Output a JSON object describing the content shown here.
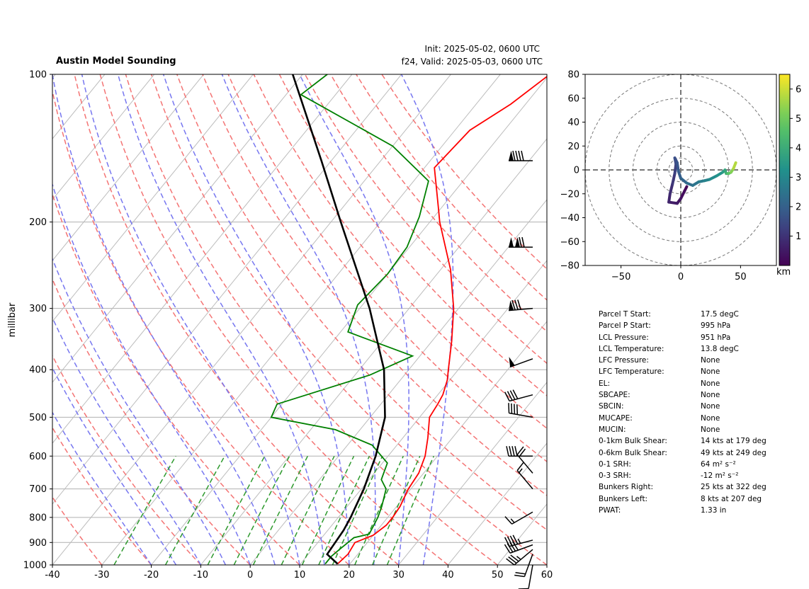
{
  "header": {
    "title": "Austin Model Sounding",
    "init": "Init: 2025-05-02, 0600 UTC",
    "valid": "f24, Valid: 2025-05-03, 0600 UTC"
  },
  "chart_data": [
    {
      "type": "skew-t",
      "title": "Austin Model Sounding",
      "ylabel": "millibar",
      "xlabel": "",
      "x_ticks": [
        -40,
        -30,
        -20,
        -10,
        0,
        10,
        20,
        30,
        40,
        50,
        60
      ],
      "y_ticks": [
        1000,
        900,
        800,
        700,
        600,
        500,
        400,
        300,
        200,
        100
      ],
      "xlim": [
        -40,
        60
      ],
      "ylim": [
        1000,
        100
      ],
      "y_scale": "log",
      "grid": true,
      "series": [
        {
          "color": "#ff0000",
          "points": [
            [
              995,
              17.5
            ],
            [
              950,
              18.0
            ],
            [
              900,
              17.5
            ],
            [
              870,
              20.0
            ],
            [
              830,
              21.0
            ],
            [
              800,
              21.0
            ],
            [
              760,
              20.7
            ],
            [
              700,
              19.5
            ],
            [
              650,
              19.0
            ],
            [
              600,
              17.5
            ],
            [
              550,
              15.0
            ],
            [
              500,
              12.0
            ],
            [
              470,
              11.5
            ],
            [
              450,
              11.0
            ],
            [
              420,
              9.5
            ],
            [
              400,
              8.0
            ],
            [
              350,
              4.0
            ],
            [
              300,
              -1.0
            ],
            [
              250,
              -8.0
            ],
            [
              200,
              -18.0
            ],
            [
              190,
              -20.0
            ],
            [
              155,
              -28.0
            ],
            [
              130,
              -27.0
            ],
            [
              115,
              -23.0
            ],
            [
              100,
              -20.0
            ]
          ]
        },
        {
          "color": "#008000",
          "points": [
            [
              995,
              15.0
            ],
            [
              960,
              15.0
            ],
            [
              930,
              15.5
            ],
            [
              880,
              16.5
            ],
            [
              865,
              19.0
            ],
            [
              800,
              18.0
            ],
            [
              760,
              17.0
            ],
            [
              700,
              15.0
            ],
            [
              670,
              12.5
            ],
            [
              620,
              11.0
            ],
            [
              570,
              5.0
            ],
            [
              530,
              -5.0
            ],
            [
              500,
              -20.0
            ],
            [
              470,
              -21.0
            ],
            [
              410,
              -7.0
            ],
            [
              375,
              -1.5
            ],
            [
              335,
              -18.5
            ],
            [
              295,
              -21.0
            ],
            [
              255,
              -20.0
            ],
            [
              225,
              -20.5
            ],
            [
              195,
              -23.0
            ],
            [
              165,
              -27.0
            ],
            [
              140,
              -40.0
            ],
            [
              110,
              -67.0
            ],
            [
              100,
              -65.0
            ]
          ]
        },
        {
          "color": "#000000",
          "points": [
            [
              995,
              17.5
            ],
            [
              951,
              13.8
            ],
            [
              900,
              13.5
            ],
            [
              850,
              13.2
            ],
            [
              800,
              12.5
            ],
            [
              700,
              10.5
            ],
            [
              600,
              7.5
            ],
            [
              500,
              3.0
            ],
            [
              400,
              -5.0
            ],
            [
              300,
              -18.0
            ],
            [
              200,
              -38.0
            ],
            [
              150,
              -52.0
            ],
            [
              100,
              -72.0
            ]
          ]
        }
      ],
      "wind_barbs": [
        {
          "p": 1000,
          "dir": 190,
          "spd": 10
        },
        {
          "p": 950,
          "dir": 200,
          "spd": 20
        },
        {
          "p": 930,
          "dir": 230,
          "spd": 35
        },
        {
          "p": 910,
          "dir": 250,
          "spd": 40
        },
        {
          "p": 890,
          "dir": 255,
          "spd": 45
        },
        {
          "p": 780,
          "dir": 240,
          "spd": 15
        },
        {
          "p": 700,
          "dir": 320,
          "spd": 15
        },
        {
          "p": 650,
          "dir": 320,
          "spd": 20
        },
        {
          "p": 600,
          "dir": 270,
          "spd": 40
        },
        {
          "p": 500,
          "dir": 280,
          "spd": 40
        },
        {
          "p": 450,
          "dir": 255,
          "spd": 40
        },
        {
          "p": 380,
          "dir": 250,
          "spd": 50
        },
        {
          "p": 300,
          "dir": 265,
          "spd": 80
        },
        {
          "p": 225,
          "dir": 270,
          "spd": 120
        },
        {
          "p": 150,
          "dir": 270,
          "spd": 90
        }
      ]
    },
    {
      "type": "hodograph",
      "x_ticks": [
        -50,
        0,
        50
      ],
      "y_ticks": [
        -80,
        -60,
        -40,
        -20,
        0,
        20,
        40,
        60,
        80
      ],
      "xlim": [
        -80,
        80
      ],
      "ylim": [
        -80,
        80
      ],
      "rings": [
        10,
        20,
        40,
        60,
        80
      ],
      "colorbar": {
        "label": "km",
        "ticks": [
          1,
          2,
          3,
          4,
          5,
          6
        ],
        "range": [
          0,
          6.5
        ],
        "colormap": "viridis"
      },
      "path": [
        [
          5,
          -14,
          0.0
        ],
        [
          3,
          -18,
          0.15
        ],
        [
          0,
          -24,
          0.3
        ],
        [
          -3,
          -28,
          0.45
        ],
        [
          -10,
          -27,
          0.6
        ],
        [
          -9,
          -20,
          0.8
        ],
        [
          -7,
          -12,
          1.0
        ],
        [
          -5,
          -3,
          1.2
        ],
        [
          -4,
          5,
          1.35
        ],
        [
          -5,
          10,
          1.5
        ],
        [
          -3,
          6,
          1.65
        ],
        [
          -2,
          -1,
          1.8
        ],
        [
          0,
          -7,
          2.0
        ],
        [
          5,
          -11,
          2.2
        ],
        [
          10,
          -13,
          2.4
        ],
        [
          15,
          -10,
          2.6
        ],
        [
          20,
          -9,
          2.8
        ],
        [
          24,
          -8,
          3.0
        ],
        [
          30,
          -5,
          3.2
        ],
        [
          35,
          -2,
          3.4
        ],
        [
          37,
          0,
          3.7
        ],
        [
          38,
          -3,
          4.0
        ],
        [
          40,
          -3,
          4.5
        ],
        [
          42,
          -2,
          5.0
        ],
        [
          44,
          1,
          5.5
        ],
        [
          46,
          6,
          6.0
        ]
      ]
    }
  ],
  "stats": [
    {
      "label": "Parcel T Start:",
      "value": "17.5 degC"
    },
    {
      "label": "Parcel P Start:",
      "value": "995 hPa"
    },
    {
      "label": "LCL Pressure:",
      "value": "951 hPa"
    },
    {
      "label": "LCL Temperature:",
      "value": "13.8 degC"
    },
    {
      "label": "LFC Pressure:",
      "value": "None"
    },
    {
      "label": "LFC Temperature:",
      "value": "None"
    },
    {
      "label": "EL:",
      "value": "None"
    },
    {
      "label": "SBCAPE:",
      "value": "None"
    },
    {
      "label": "SBCIN:",
      "value": "None"
    },
    {
      "label": "MUCAPE:",
      "value": "None"
    },
    {
      "label": "MUCIN:",
      "value": "None"
    },
    {
      "label": "0-1km Bulk Shear:",
      "value": "14 kts at 179 deg"
    },
    {
      "label": "0-6km Bulk Shear:",
      "value": "49 kts at 249 deg"
    },
    {
      "label": "0-1 SRH:",
      "value": "64 m² s⁻²"
    },
    {
      "label": "0-3 SRH:",
      "value": "-12 m² s⁻²"
    },
    {
      "label": "Bunkers Right:",
      "value": "25 kts at 322 deg"
    },
    {
      "label": "Bunkers Left:",
      "value": "8 kts at 207 deg"
    },
    {
      "label": "PWAT:",
      "value": "1.33 in"
    }
  ],
  "colors": {
    "temperature": "#ff0000",
    "dewpoint": "#008000",
    "parcel": "#000000",
    "dry_adiabat": "#f47474",
    "moist_adiabat": "#7777f0",
    "mixing_ratio": "#2e9a2e",
    "isotherm": "#bcbcbc",
    "zero_isotherm_extra": "#8844cc"
  }
}
